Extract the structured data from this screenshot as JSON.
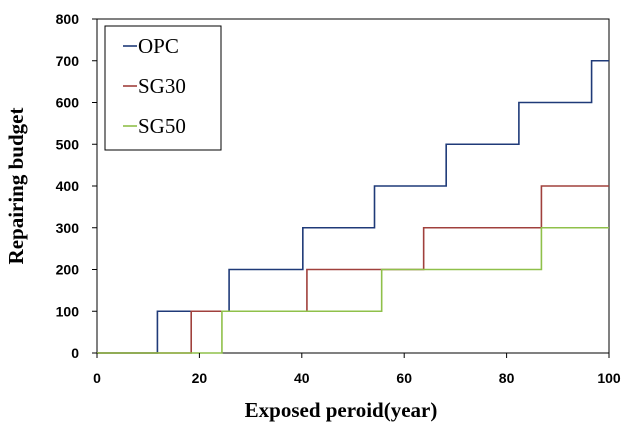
{
  "chart_data": {
    "type": "line",
    "step": true,
    "xlabel": "Exposed peroid(year)",
    "ylabel": "Repairing budget",
    "xlim": [
      0,
      100
    ],
    "ylim": [
      0,
      800
    ],
    "xticks": [
      0,
      20,
      40,
      60,
      80,
      100
    ],
    "yticks": [
      0,
      100,
      200,
      300,
      400,
      500,
      600,
      700,
      800
    ],
    "grid": false,
    "legend_position": "top-left",
    "series": [
      {
        "name": "OPC",
        "color": "#1f3a78",
        "x": [
          0,
          11.8,
          25.8,
          40.2,
          54.2,
          68.2,
          82.4,
          96.6,
          100
        ],
        "y": [
          0,
          100,
          200,
          300,
          400,
          500,
          600,
          700,
          700
        ]
      },
      {
        "name": "SG30",
        "color": "#a0403c",
        "x": [
          0,
          18.4,
          41.0,
          63.8,
          86.8,
          100
        ],
        "y": [
          0,
          100,
          200,
          300,
          400,
          400
        ]
      },
      {
        "name": "SG50",
        "color": "#8fc04a",
        "x": [
          0,
          24.4,
          55.6,
          86.8,
          100
        ],
        "y": [
          0,
          100,
          200,
          300,
          300
        ]
      }
    ]
  }
}
